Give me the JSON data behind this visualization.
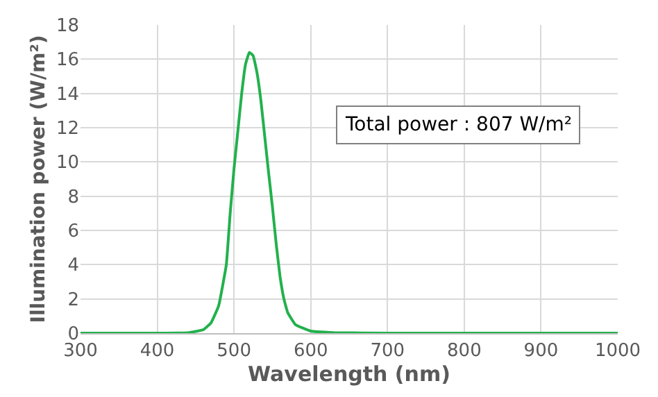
{
  "chart_data": {
    "type": "line",
    "xlabel": "Wavelength (nm)",
    "ylabel": "Illumination power (W/m²)",
    "annotations": [
      "Total power : 807 W/m²"
    ],
    "series": [
      {
        "color": "#22b14c",
        "x": [
          300,
          400,
          440,
          460,
          470,
          480,
          490,
          495,
          500,
          505,
          510,
          515,
          520,
          525,
          530,
          535,
          540,
          545,
          550,
          555,
          560,
          565,
          570,
          580,
          600,
          630,
          700,
          1000
        ],
        "values": [
          0,
          0,
          0.02,
          0.2,
          0.6,
          1.6,
          4.0,
          7.0,
          9.6,
          11.8,
          14.0,
          15.7,
          16.4,
          16.2,
          15.2,
          13.6,
          11.5,
          9.4,
          7.4,
          5.2,
          3.3,
          2.0,
          1.2,
          0.5,
          0.12,
          0.03,
          0,
          0
        ]
      }
    ],
    "xlim": [
      300,
      1000
    ],
    "xticks": [
      300,
      400,
      500,
      600,
      700,
      800,
      900,
      1000
    ],
    "ylim": [
      0,
      18
    ],
    "yticks": [
      0,
      2,
      4,
      6,
      8,
      10,
      12,
      14,
      16,
      18
    ],
    "grid": true,
    "legend": false,
    "marker": "none",
    "line_style": "solid"
  }
}
